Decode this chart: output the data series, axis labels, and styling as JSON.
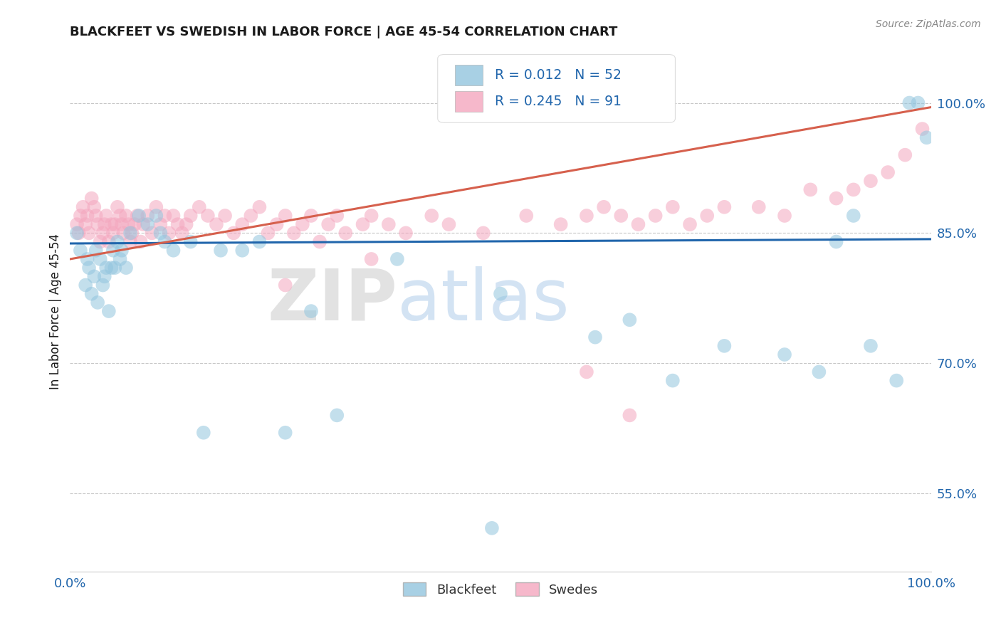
{
  "title": "BLACKFEET VS SWEDISH IN LABOR FORCE | AGE 45-54 CORRELATION CHART",
  "source_text": "Source: ZipAtlas.com",
  "ylabel": "In Labor Force | Age 45-54",
  "xlim": [
    0.0,
    1.0
  ],
  "ylim": [
    0.46,
    1.06
  ],
  "yticks": [
    0.55,
    0.7,
    0.85,
    1.0
  ],
  "ytick_labels": [
    "55.0%",
    "70.0%",
    "85.0%",
    "100.0%"
  ],
  "xticks": [
    0.0,
    1.0
  ],
  "xtick_labels": [
    "0.0%",
    "100.0%"
  ],
  "legend_r_values": [
    "R = 0.012",
    "R = 0.245"
  ],
  "legend_n_values": [
    "N = 52",
    "N = 91"
  ],
  "blue_color": "#92c5de",
  "pink_color": "#f4a6be",
  "trend_blue_color": "#2166ac",
  "trend_pink_color": "#d6604d",
  "r_n_text_color": "#2166ac",
  "background_color": "#ffffff",
  "grid_color": "#b0b0b0",
  "title_color": "#1a1a1a",
  "axis_label_color": "#1a1a1a",
  "tick_label_color": "#2166ac",
  "source_color": "#888888",
  "watermark_zip_color": "#cccccc",
  "watermark_atlas_color": "#a0c0e0",
  "blue_trend_intercept": 0.838,
  "blue_trend_slope": 0.005,
  "pink_trend_intercept": 0.82,
  "pink_trend_slope": 0.175,
  "blue_x": [
    0.008,
    0.012,
    0.018,
    0.02,
    0.022,
    0.025,
    0.028,
    0.03,
    0.032,
    0.035,
    0.038,
    0.04,
    0.042,
    0.045,
    0.048,
    0.05,
    0.052,
    0.055,
    0.058,
    0.06,
    0.065,
    0.07,
    0.08,
    0.09,
    0.1,
    0.105,
    0.11,
    0.12,
    0.14,
    0.155,
    0.175,
    0.2,
    0.22,
    0.25,
    0.28,
    0.31,
    0.38,
    0.49,
    0.5,
    0.61,
    0.65,
    0.7,
    0.76,
    0.83,
    0.87,
    0.89,
    0.91,
    0.93,
    0.96,
    0.975,
    0.985,
    0.995
  ],
  "blue_y": [
    0.85,
    0.83,
    0.79,
    0.82,
    0.81,
    0.78,
    0.8,
    0.83,
    0.77,
    0.82,
    0.79,
    0.8,
    0.81,
    0.76,
    0.81,
    0.83,
    0.81,
    0.84,
    0.82,
    0.83,
    0.81,
    0.85,
    0.87,
    0.86,
    0.87,
    0.85,
    0.84,
    0.83,
    0.84,
    0.62,
    0.83,
    0.83,
    0.84,
    0.62,
    0.76,
    0.64,
    0.82,
    0.51,
    0.78,
    0.73,
    0.75,
    0.68,
    0.72,
    0.71,
    0.69,
    0.84,
    0.87,
    0.72,
    0.68,
    1.0,
    1.0,
    0.96
  ],
  "pink_x": [
    0.008,
    0.01,
    0.012,
    0.015,
    0.018,
    0.02,
    0.022,
    0.025,
    0.028,
    0.03,
    0.032,
    0.035,
    0.038,
    0.04,
    0.042,
    0.045,
    0.048,
    0.05,
    0.052,
    0.055,
    0.058,
    0.06,
    0.062,
    0.065,
    0.068,
    0.07,
    0.072,
    0.075,
    0.078,
    0.082,
    0.085,
    0.09,
    0.095,
    0.1,
    0.105,
    0.11,
    0.115,
    0.12,
    0.125,
    0.13,
    0.135,
    0.14,
    0.15,
    0.16,
    0.17,
    0.18,
    0.19,
    0.2,
    0.21,
    0.22,
    0.23,
    0.24,
    0.25,
    0.26,
    0.27,
    0.28,
    0.29,
    0.3,
    0.31,
    0.32,
    0.34,
    0.35,
    0.37,
    0.39,
    0.42,
    0.44,
    0.48,
    0.53,
    0.57,
    0.6,
    0.62,
    0.64,
    0.66,
    0.68,
    0.7,
    0.72,
    0.74,
    0.76,
    0.8,
    0.83,
    0.86,
    0.89,
    0.91,
    0.93,
    0.95,
    0.97,
    0.99,
    0.25,
    0.35,
    0.6,
    0.65
  ],
  "pink_y": [
    0.86,
    0.85,
    0.87,
    0.88,
    0.86,
    0.87,
    0.85,
    0.89,
    0.88,
    0.87,
    0.86,
    0.84,
    0.85,
    0.86,
    0.87,
    0.84,
    0.86,
    0.85,
    0.86,
    0.88,
    0.87,
    0.86,
    0.85,
    0.87,
    0.86,
    0.84,
    0.85,
    0.86,
    0.87,
    0.84,
    0.86,
    0.87,
    0.85,
    0.88,
    0.86,
    0.87,
    0.85,
    0.87,
    0.86,
    0.85,
    0.86,
    0.87,
    0.88,
    0.87,
    0.86,
    0.87,
    0.85,
    0.86,
    0.87,
    0.88,
    0.85,
    0.86,
    0.87,
    0.85,
    0.86,
    0.87,
    0.84,
    0.86,
    0.87,
    0.85,
    0.86,
    0.87,
    0.86,
    0.85,
    0.87,
    0.86,
    0.85,
    0.87,
    0.86,
    0.87,
    0.88,
    0.87,
    0.86,
    0.87,
    0.88,
    0.86,
    0.87,
    0.88,
    0.88,
    0.87,
    0.9,
    0.89,
    0.9,
    0.91,
    0.92,
    0.94,
    0.97,
    0.79,
    0.82,
    0.69,
    0.64
  ]
}
